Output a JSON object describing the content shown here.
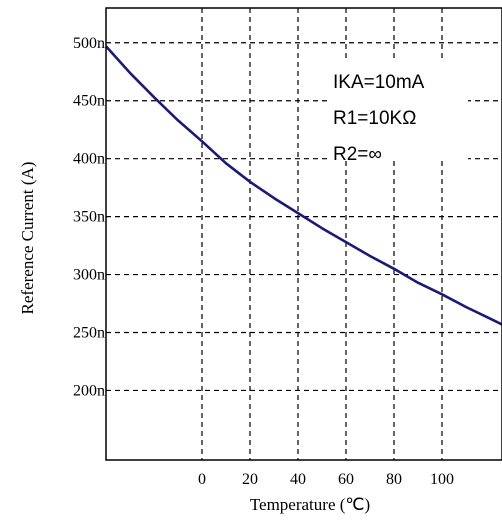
{
  "chart_data": {
    "type": "line",
    "title": "",
    "xlabel": "Temperature (℃)",
    "ylabel": "Reference Current (A)",
    "xlim": [
      -40,
      125
    ],
    "ylim": [
      140,
      530
    ],
    "x_ticks": [
      0,
      20,
      40,
      60,
      80,
      100
    ],
    "x_tick_labels": [
      "0",
      "20",
      "40",
      "60",
      "80",
      "100"
    ],
    "y_ticks": [
      200,
      250,
      300,
      350,
      400,
      450,
      500
    ],
    "y_tick_labels": [
      "200n",
      "250n",
      "300n",
      "350n",
      "400n",
      "450n",
      "500n"
    ],
    "grid": true,
    "series": [
      {
        "color": "#1a1a7a",
        "x": [
          -40,
          -30,
          -20,
          -10,
          0,
          10,
          20,
          30,
          40,
          50,
          60,
          70,
          80,
          90,
          100,
          110,
          120,
          125
        ],
        "y": [
          497,
          474,
          453,
          433,
          415,
          396,
          380,
          366,
          353,
          340,
          328,
          316,
          305,
          293,
          283,
          272,
          262,
          257
        ]
      }
    ],
    "annotations": [
      "IKA=10mA",
      "R1=10KΩ",
      "R2=∞"
    ]
  }
}
